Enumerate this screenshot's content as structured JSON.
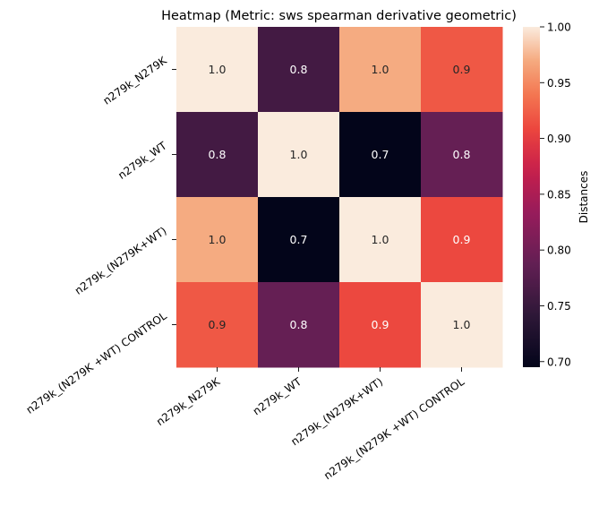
{
  "chart_data": {
    "type": "heatmap",
    "title": "Heatmap (Metric: sws spearman derivative geometric)",
    "xlabel": "",
    "ylabel": "",
    "x_categories": [
      "n279k_N279K",
      "n279k_WT",
      "n279k_(N279K+WT)",
      "n279k_(N279K +WT) CONTROL"
    ],
    "y_categories": [
      "n279k_N279K",
      "n279k_WT",
      "n279k_(N279K+WT)",
      "n279k_(N279K +WT) CONTROL"
    ],
    "values": [
      [
        1.0,
        0.76,
        0.97,
        0.92
      ],
      [
        0.76,
        1.0,
        0.695,
        0.79
      ],
      [
        0.97,
        0.695,
        1.0,
        0.91
      ],
      [
        0.92,
        0.79,
        0.91,
        1.0
      ]
    ],
    "annotations": [
      [
        "1.0",
        "0.8",
        "1.0",
        "0.9"
      ],
      [
        "0.8",
        "1.0",
        "0.7",
        "0.8"
      ],
      [
        "1.0",
        "0.7",
        "1.0",
        "0.9"
      ],
      [
        "0.9",
        "0.8",
        "0.9",
        "1.0"
      ]
    ],
    "colormap": "rocket",
    "colorbar": {
      "label": "Distances",
      "range": [
        0.695,
        1.0
      ],
      "ticks": [
        0.7,
        0.75,
        0.8,
        0.85,
        0.9,
        0.95,
        1.0
      ],
      "tick_labels": [
        "0.70",
        "0.75",
        "0.80",
        "0.85",
        "0.90",
        "0.95",
        "1.00"
      ]
    }
  }
}
